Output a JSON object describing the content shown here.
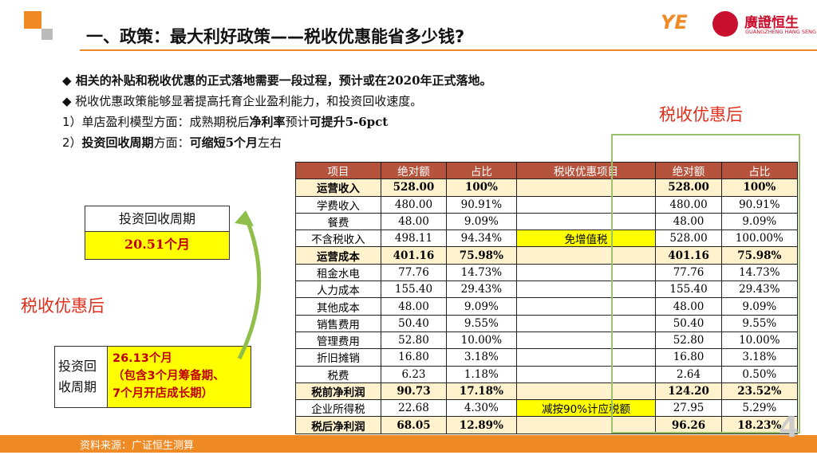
{
  "header": {
    "title": "一、政策：最大利好政策——税收优惠能省多少钱?",
    "logo": "廣證恒生",
    "logo_en": "GUANGZHENG HANG SENG"
  },
  "bullets": [
    [
      {
        "text": "◆ 相关的补贴和税收优惠的正式落地需要一段过程，预计或在2020年正式落地。",
        "bold": true
      }
    ],
    [
      {
        "text": "◆ 税收优惠政策能够显著提高托育企业盈利能力，和投资回收速度。",
        "bold": false
      }
    ],
    [
      {
        "text": "1）单店盈利模型方面：成熟期税后",
        "bold": false
      },
      {
        "text": "净利率",
        "bold": true
      },
      {
        "text": "预计",
        "bold": false
      },
      {
        "text": "可提升5-6pct",
        "bold": true
      }
    ],
    [
      {
        "text": "2）",
        "bold": false
      },
      {
        "text": "投资回收周期",
        "bold": true
      },
      {
        "text": "方面：",
        "bold": false
      },
      {
        "text": "可缩短5个月",
        "bold": true
      },
      {
        "text": "左右",
        "bold": false
      }
    ]
  ],
  "after_label_right": "税收优惠后",
  "after_label_left": "税收优惠后",
  "before_box": {
    "label": "投资回收周期",
    "value": "20.51个月"
  },
  "after_box": {
    "label": "投资回收周期",
    "lines": [
      "26.13个月",
      "（包含3个月筹备期、",
      "7个月开店成长期）"
    ]
  },
  "table": {
    "header": [
      "项目",
      "绝对额",
      "占比",
      "税收优惠项目",
      "绝对额",
      "占比"
    ],
    "rows": [
      [
        "运营收入",
        "528.00",
        "100%",
        null,
        "528.00",
        "100%"
      ],
      [
        "学费收入",
        "480.00",
        "90.91%",
        null,
        "480.00",
        "90.91%"
      ],
      [
        "餐费",
        "48.00",
        "9.09%",
        null,
        "48.00",
        "9.09%"
      ],
      [
        "不含税收入",
        "498.11",
        "94.34%",
        "免增值税",
        "528.00",
        "100.00%"
      ],
      [
        "运营成本",
        "401.16",
        "75.98%",
        null,
        "401.16",
        "75.98%"
      ],
      [
        "租金水电",
        "77.76",
        "14.73%",
        null,
        "77.76",
        "14.73%"
      ],
      [
        "人力成本",
        "155.40",
        "29.43%",
        null,
        "155.40",
        "29.43%"
      ],
      [
        "其他成本",
        "48.00",
        "9.09%",
        null,
        "48.00",
        "9.09%"
      ],
      [
        "销售费用",
        "50.40",
        "9.55%",
        null,
        "50.40",
        "9.55%"
      ],
      [
        "管理费用",
        "52.80",
        "10.00%",
        null,
        "52.80",
        "10.00%"
      ],
      [
        "折旧摊销",
        "16.80",
        "3.18%",
        null,
        "16.80",
        "3.18%"
      ],
      [
        "税费",
        "6.23",
        "1.18%",
        null,
        "2.64",
        "0.50%"
      ],
      [
        "税前净利润",
        "90.73",
        "17.18%",
        null,
        "124.20",
        "23.52%"
      ],
      [
        "企业所得税",
        "22.68",
        "4.30%",
        "减按90%计应税额",
        "27.95",
        "5.29%"
      ],
      [
        "税后净利润",
        "68.05",
        "12.89%",
        null,
        "96.26",
        "18.23%"
      ]
    ],
    "highlight_rows": [
      0,
      4,
      12,
      14
    ]
  },
  "footer": {
    "source": "资料来源：广证恒生测算",
    "page": "4"
  }
}
